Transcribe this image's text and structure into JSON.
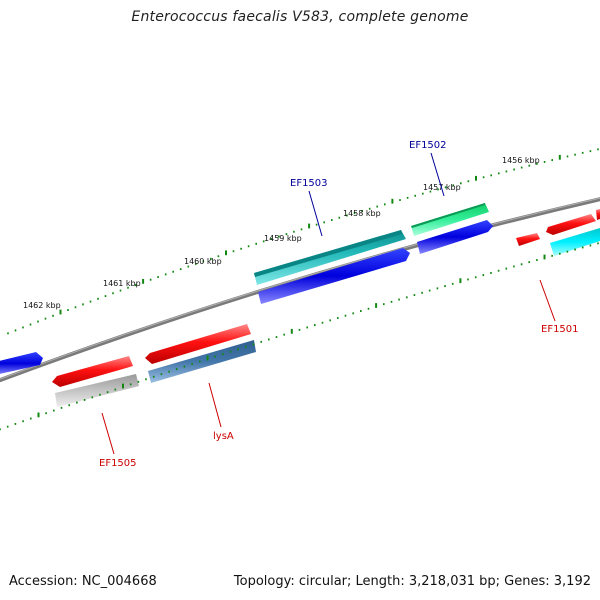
{
  "map": {
    "title": "Enterococcus faecalis V583, complete genome",
    "accession_label": "Accession: NC_004668",
    "summary_label": "Topology: circular; Length: 3,218,031 bp; Genes: 3,192"
  },
  "scale": {
    "ticks": [
      {
        "label": "1456 kbp",
        "kbp": 1456
      },
      {
        "label": "1457 kbp",
        "kbp": 1457
      },
      {
        "label": "1458 kbp",
        "kbp": 1458
      },
      {
        "label": "1459 kbp",
        "kbp": 1459
      },
      {
        "label": "1460 kbp",
        "kbp": 1460
      },
      {
        "label": "1461 kbp",
        "kbp": 1461
      },
      {
        "label": "1462 kbp",
        "kbp": 1462
      }
    ]
  },
  "genes": [
    {
      "id": "EF1501",
      "label": "EF1501",
      "label_color": "#cc0000",
      "color": "#ee0000"
    },
    {
      "id": "EF1502",
      "label": "EF1502",
      "label_color": "#000099",
      "color": "#22ee88"
    },
    {
      "id": "EF1503",
      "label": "EF1503",
      "label_color": "#000099",
      "color": "#22b8b8"
    },
    {
      "id": "lysA",
      "label": "lysA",
      "label_color": "#cc0000",
      "color": "#4477aa"
    },
    {
      "id": "EF1505",
      "label": "EF1505",
      "label_color": "#cc0000",
      "color": "#ee0000"
    }
  ],
  "colors": {
    "backbone": "#808080",
    "tick": "#118811",
    "feature_red": "#ee0000",
    "feature_blue": "#0000dd",
    "feature_cyan": "#22b8b8",
    "feature_light_cyan": "#00e8f0",
    "feature_green": "#22ee88",
    "feature_steel": "#4477aa",
    "feature_grey": "#bbbbbb"
  }
}
